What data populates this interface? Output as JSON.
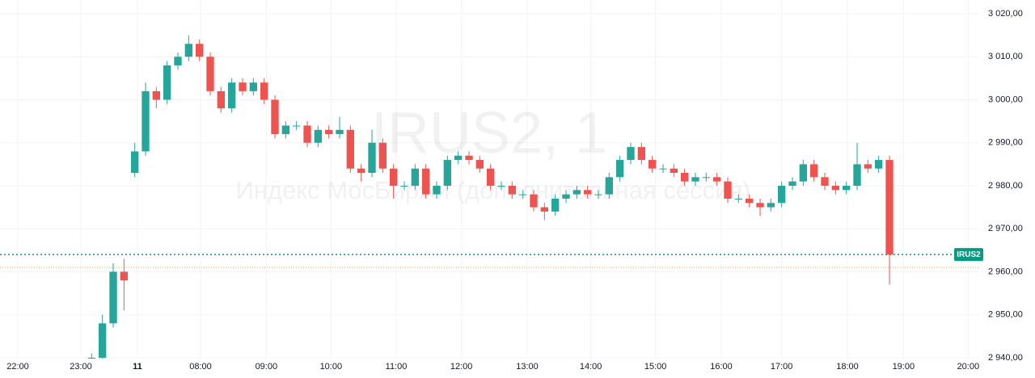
{
  "chart_data": {
    "type": "candlestick",
    "title": "IRUS2, 1",
    "subtitle": "Индекс МосБиржи (дополнительная сессия)",
    "grid": true,
    "xlim": [
      -8.5,
      82.25
    ],
    "xticks": [
      {
        "value": -6.85,
        "label": "22:00"
      },
      {
        "value": -1,
        "label": "23:00"
      },
      {
        "value": 4.25,
        "label": "11"
      },
      {
        "value": 10.1,
        "label": "08:00"
      },
      {
        "value": 16.2,
        "label": "09:00"
      },
      {
        "value": 22.2,
        "label": "10:00"
      },
      {
        "value": 28.25,
        "label": "11:00"
      },
      {
        "value": 34.3,
        "label": "12:00"
      },
      {
        "value": 40.4,
        "label": "13:00"
      },
      {
        "value": 46.3,
        "label": "14:00"
      },
      {
        "value": 52.3,
        "label": "15:00"
      },
      {
        "value": 58.4,
        "label": "16:00"
      },
      {
        "value": 64,
        "label": "17:00"
      },
      {
        "value": 70.1,
        "label": "18:00"
      },
      {
        "value": 75.3,
        "label": "19:00"
      },
      {
        "value": 81.3,
        "label": "20:00"
      }
    ],
    "ylim": [
      2939.8,
      3023.2
    ],
    "yticks": [
      {
        "value": 2940,
        "label": "2 940,00"
      },
      {
        "value": 2950,
        "label": "2 950,00"
      },
      {
        "value": 2960,
        "label": "2 960,00"
      },
      {
        "value": 2970,
        "label": "2 970,00"
      },
      {
        "value": 2980,
        "label": "2 980,00"
      },
      {
        "value": 2990,
        "label": "2 990,00"
      },
      {
        "value": 3000,
        "label": "3 000,00"
      },
      {
        "value": 3010,
        "label": "3 010,00"
      },
      {
        "value": 3020,
        "label": "3 020,00"
      }
    ],
    "up_color": "#26a69a",
    "down_color": "#ef5350",
    "open": [
      2936,
      2940,
      2948,
      2960,
      2983,
      2988,
      3002,
      3000,
      3008,
      3010,
      3013,
      3010,
      3002,
      2998,
      3004,
      3002,
      3004,
      3000,
      2992,
      2994,
      2994,
      2990,
      2993,
      2992,
      2993,
      2984,
      2983,
      2990,
      2984,
      2980,
      2980,
      2984,
      2978,
      2980,
      2986,
      2987,
      2986,
      2984,
      2980,
      2980,
      2978,
      2978,
      2975,
      2974,
      2977,
      2978,
      2979,
      2978,
      2978,
      2982,
      2986,
      2989,
      2986,
      2984,
      2984,
      2983,
      2981,
      2982,
      2982,
      2981,
      2977,
      2977,
      2976,
      2975,
      2976,
      2980,
      2981,
      2985,
      2982,
      2980,
      2979,
      2980,
      2985,
      2984,
      2986
    ],
    "high": [
      2941,
      2950,
      2962,
      2963,
      2990,
      3004,
      3003,
      3009,
      3011,
      3015,
      3014,
      3011,
      3003,
      3005,
      3005,
      3005,
      3005,
      3001,
      2995,
      2995,
      2995,
      2994,
      2994,
      2996,
      2994,
      2985,
      2993,
      2991,
      2985,
      2981,
      2985,
      2985,
      2981,
      2987,
      2988,
      2988,
      2987,
      2985,
      2981,
      2981,
      2979,
      2979,
      2976,
      2978,
      2979,
      2980,
      2980,
      2979,
      2983,
      2987,
      2990,
      2990,
      2987,
      2985,
      2985,
      2984,
      2983,
      2983,
      2983,
      2982,
      2978,
      2978,
      2977,
      2977,
      2981,
      2982,
      2986,
      2986,
      2983,
      2981,
      2981,
      2990,
      2986,
      2987,
      2987
    ],
    "low": [
      2936,
      2939,
      2947,
      2951,
      2982,
      2987,
      2998,
      2999,
      3007,
      3009,
      3009,
      3001,
      2997,
      2997,
      3001,
      3001,
      2999,
      2991,
      2991,
      2993,
      2989,
      2989,
      2991,
      2991,
      2983,
      2981,
      2982,
      2983,
      2977,
      2979,
      2979,
      2977,
      2977,
      2979,
      2985,
      2985,
      2983,
      2979,
      2979,
      2977,
      2977,
      2974,
      2972,
      2973,
      2976,
      2977,
      2977,
      2977,
      2977,
      2981,
      2985,
      2985,
      2983,
      2983,
      2982,
      2980,
      2980,
      2981,
      2980,
      2976,
      2976,
      2975,
      2973,
      2974,
      2975,
      2979,
      2980,
      2981,
      2979,
      2978,
      2978,
      2979,
      2983,
      2983,
      2957
    ],
    "close": [
      2940,
      2948,
      2960,
      2958,
      2988,
      3002,
      3000,
      3008,
      3010,
      3013,
      3010,
      3002,
      2998,
      3004,
      3002,
      3004,
      3000,
      2992,
      2994,
      2994,
      2990,
      2993,
      2992,
      2993,
      2984,
      2983,
      2990,
      2984,
      2980,
      2980,
      2984,
      2978,
      2980,
      2986,
      2987,
      2986,
      2984,
      2980,
      2980,
      2978,
      2978,
      2975,
      2974,
      2977,
      2978,
      2979,
      2978,
      2978,
      2982,
      2986,
      2989,
      2986,
      2984,
      2984,
      2983,
      2981,
      2982,
      2982,
      2981,
      2977,
      2977,
      2976,
      2975,
      2976,
      2980,
      2981,
      2985,
      2982,
      2980,
      2979,
      2980,
      2985,
      2984,
      2986,
      2964
    ],
    "price_line": {
      "label": "IRUS2",
      "value": 2964,
      "color": "#089981"
    },
    "reference_line": {
      "value": 2961,
      "color": "#f5a623"
    }
  }
}
